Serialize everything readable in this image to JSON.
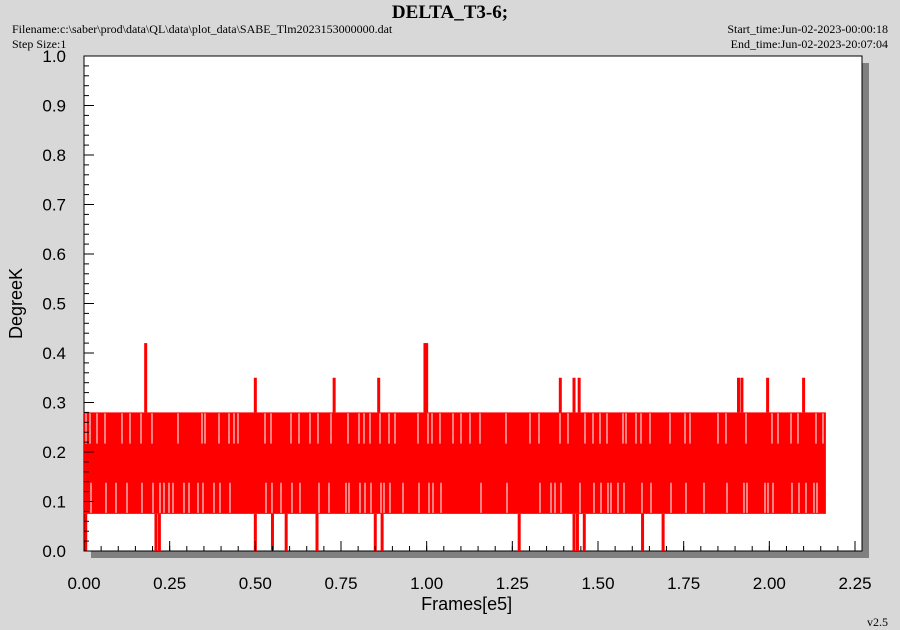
{
  "header": {
    "title": "DELTA_T3-6;",
    "filename": "Filename:c:\\saber\\prod\\data\\QL\\data\\plot_data\\SABE_Tlm2023153000000.dat",
    "step_size": "Step Size:1",
    "start_time": "Start_time:Jun-02-2023-00:00:18",
    "end_time": "End_time:Jun-02-2023-20:07:04",
    "version": "v2.5"
  },
  "colors": {
    "series": "#ff0000",
    "plot_bg": "#ffffff",
    "shadow": "#808080"
  },
  "chart_data": {
    "type": "line",
    "title": "DELTA_T3-6;",
    "xlabel": "Frames[e5]",
    "ylabel": "DegreeK",
    "xlim": [
      0,
      2.25
    ],
    "ylim": [
      0,
      1.0
    ],
    "x_ticks": [
      "0.00",
      "0.25",
      "0.50",
      "0.75",
      "1.00",
      "1.25",
      "1.50",
      "1.75",
      "2.00",
      "2.25"
    ],
    "y_ticks": [
      "0.0",
      "0.1",
      "0.2",
      "0.3",
      "0.4",
      "0.5",
      "0.6",
      "0.7",
      "0.8",
      "0.9",
      "1.0"
    ],
    "grid": false,
    "series": [
      {
        "x_range": [
          0,
          2.165
        ],
        "dense_band": {
          "low": 0.075,
          "high": 0.28,
          "core_low": 0.14,
          "core_high": 0.215
        },
        "x": [
          0.18,
          0.5,
          0.73,
          0.86,
          0.995,
          1.0,
          1.39,
          1.43,
          1.445,
          1.91,
          1.92,
          1.995,
          2.1,
          0.005,
          0.21,
          0.22,
          0.5,
          0.55,
          0.59,
          0.68,
          0.85,
          0.87,
          1.27,
          1.43,
          1.44,
          1.46,
          1.63,
          1.69
        ],
        "y": [
          0.42,
          0.35,
          0.35,
          0.35,
          0.42,
          0.42,
          0.35,
          0.35,
          0.35,
          0.35,
          0.35,
          0.35,
          0.35,
          0.0,
          0.0,
          0.0,
          0.0,
          0.0,
          0.0,
          0.0,
          0.0,
          0.0,
          0.0,
          0.0,
          0.0,
          0.0,
          0.0,
          0.0
        ]
      }
    ]
  }
}
